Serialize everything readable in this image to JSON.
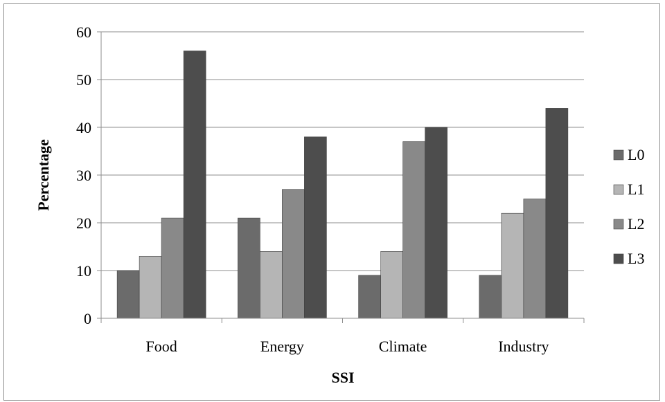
{
  "chart_data": {
    "type": "bar",
    "categories": [
      "Food",
      "Energy",
      "Climate",
      "Industry"
    ],
    "series": [
      {
        "name": "L0",
        "values": [
          10,
          21,
          9,
          9
        ],
        "color": "#6b6b6b"
      },
      {
        "name": "L1",
        "values": [
          13,
          14,
          14,
          22
        ],
        "color": "#b5b5b5"
      },
      {
        "name": "L2",
        "values": [
          21,
          27,
          37,
          25
        ],
        "color": "#898989"
      },
      {
        "name": "L3",
        "values": [
          56,
          38,
          40,
          44
        ],
        "color": "#4d4d4d"
      }
    ],
    "xlabel": "SSI",
    "ylabel": "Percentage",
    "ylim": [
      0,
      60
    ],
    "yticks": [
      "0",
      "10",
      "20",
      "30",
      "40",
      "50",
      "60"
    ],
    "grid": true,
    "legend_position": "right"
  }
}
